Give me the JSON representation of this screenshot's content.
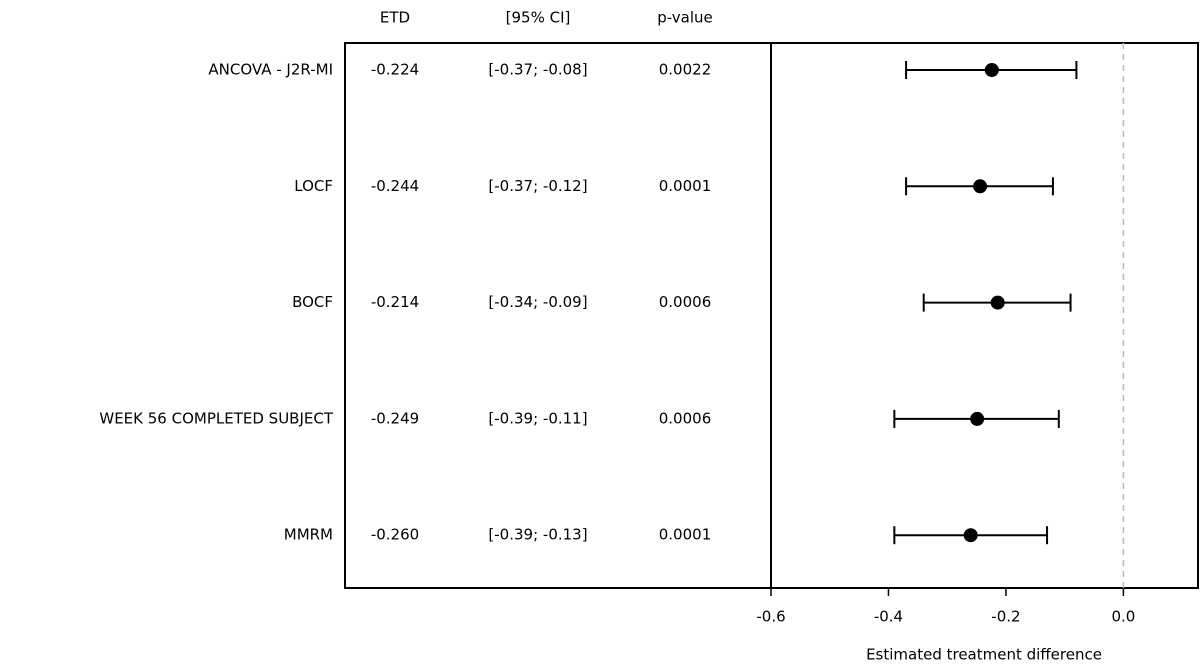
{
  "chart_data": {
    "type": "forest",
    "columns": [
      "ETD",
      "[95% CI]",
      "p-value"
    ],
    "categories": [
      "ANCOVA - J2R-MI",
      "LOCF",
      "BOCF",
      "WEEK 56 COMPLETED SUBJECT",
      "MMRM"
    ],
    "values": [
      -0.224,
      -0.244,
      -0.214,
      -0.249,
      -0.26
    ],
    "value_labels": [
      "-0.224",
      "-0.244",
      "-0.214",
      "-0.249",
      "-0.260"
    ],
    "ci_lower": [
      -0.37,
      -0.37,
      -0.34,
      -0.39,
      -0.39
    ],
    "ci_upper": [
      -0.08,
      -0.12,
      -0.09,
      -0.11,
      -0.13
    ],
    "ci_labels": [
      "[-0.37; -0.08]",
      "[-0.37; -0.12]",
      "[-0.34; -0.09]",
      "[-0.39; -0.11]",
      "[-0.39; -0.13]"
    ],
    "p_values": [
      "0.0022",
      "0.0001",
      "0.0006",
      "0.0006",
      "0.0001"
    ],
    "x_label": "Estimated treatment difference",
    "xlim": [
      -0.6,
      0.127
    ],
    "xticks": [
      -0.6,
      -0.4,
      -0.2,
      {
        "value": 0,
        "label": "0.0"
      }
    ],
    "ref_line": 0,
    "color": "#000000"
  }
}
